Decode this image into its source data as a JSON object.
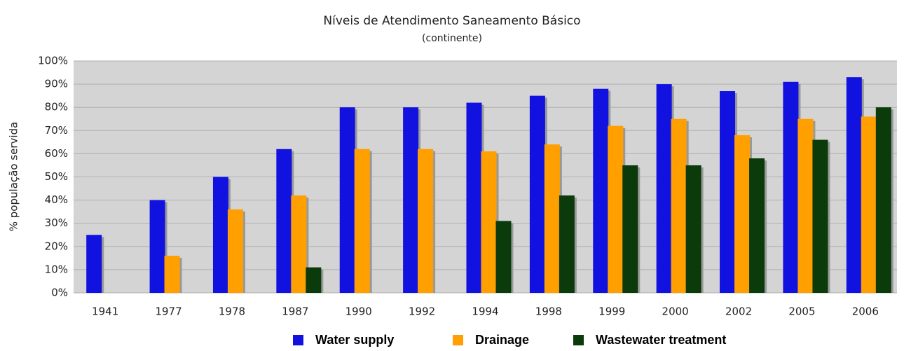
{
  "chart_data": {
    "type": "bar",
    "title": "Níveis de Atendimento Saneamento Básico",
    "subtitle": "(continente)",
    "y_label": "% população servida",
    "categories": [
      "1941",
      "1977",
      "1978",
      "1987",
      "1990",
      "1992",
      "1994",
      "1998",
      "1999",
      "2000",
      "2002",
      "2005",
      "2006"
    ],
    "series": [
      {
        "name": "Water supply",
        "color": "#1212e0",
        "values": [
          25,
          40,
          50,
          62,
          80,
          80,
          82,
          85,
          88,
          90,
          87,
          91,
          93
        ]
      },
      {
        "name": "Drainage",
        "color": "#ffa000",
        "values": [
          null,
          16,
          36,
          42,
          62,
          62,
          61,
          64,
          72,
          75,
          68,
          75,
          76
        ]
      },
      {
        "name": "Wastewater treatment",
        "color": "#0b3a0b",
        "values": [
          null,
          null,
          null,
          11,
          null,
          null,
          31,
          42,
          55,
          55,
          58,
          66,
          80
        ]
      }
    ],
    "ylim": [
      0,
      100
    ],
    "yticks": [
      {
        "value": 0,
        "label": "0%"
      },
      {
        "value": 10,
        "label": "10%"
      },
      {
        "value": 20,
        "label": "20%"
      },
      {
        "value": 30,
        "label": "30%"
      },
      {
        "value": 40,
        "label": "40%"
      },
      {
        "value": 50,
        "label": "50%"
      },
      {
        "value": 60,
        "label": "60%"
      },
      {
        "value": 70,
        "label": "70%"
      },
      {
        "value": 80,
        "label": "80%"
      },
      {
        "value": 90,
        "label": "90%"
      },
      {
        "value": 100,
        "label": "100%"
      }
    ],
    "grid": true,
    "legend": "bottom"
  }
}
